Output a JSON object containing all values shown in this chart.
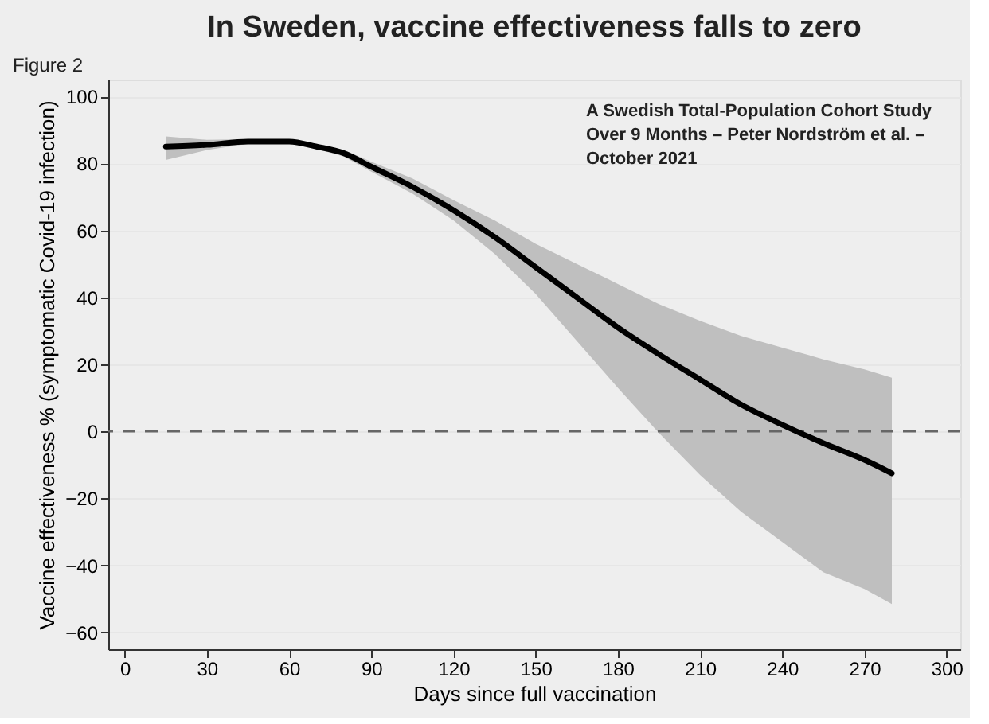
{
  "chart_data": {
    "type": "line",
    "title": "In Sweden, vaccine effectiveness falls to zero",
    "xlabel": "Days since full vaccination",
    "ylabel": "Vaccine effectiveness % (symptomatic Covid-19 infection)",
    "annotations": [
      "Figure 2",
      "A Swedish Total-Population Cohort Study\nOver 9 Months – Peter Nordström et al. –\nOctober 2021"
    ],
    "x": [
      15,
      30,
      45,
      60,
      70,
      80,
      90,
      105,
      120,
      135,
      150,
      165,
      180,
      195,
      210,
      225,
      240,
      255,
      270,
      280
    ],
    "series": [
      {
        "color": "#000000",
        "values": [
          85,
          85.5,
          86.5,
          86.5,
          85,
          83,
          79,
          73,
          66,
          58,
          49,
          40,
          31,
          23,
          15.5,
          8,
          2,
          -3.5,
          -8.5,
          -12.5
        ],
        "lower": [
          81,
          84,
          85.8,
          85.8,
          84.3,
          82,
          77.5,
          71,
          63,
          53,
          41,
          27,
          13,
          -0.5,
          -13,
          -24,
          -33,
          -42,
          -47,
          -51.5
        ],
        "upper": [
          88,
          87,
          87.2,
          87.2,
          85.8,
          84,
          80.5,
          75.5,
          69,
          63,
          56,
          50,
          44,
          38,
          33,
          28.5,
          25,
          21.5,
          18.5,
          16
        ]
      }
    ],
    "xlim": [
      -6,
      305
    ],
    "ylim": [
      -65,
      105
    ],
    "xticks": [
      0,
      30,
      60,
      90,
      120,
      150,
      180,
      210,
      240,
      270,
      300
    ],
    "yticks": [
      -60,
      -40,
      -20,
      0,
      20,
      40,
      60,
      80,
      100
    ],
    "ref_lines": [
      {
        "axis": "y",
        "value": 0,
        "color": "#666666",
        "line_style": "dashed"
      }
    ],
    "grid": "y",
    "line_style": "solid",
    "marker": "none"
  }
}
